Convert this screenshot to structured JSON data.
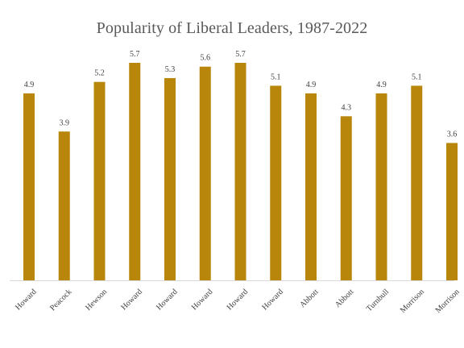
{
  "colors": {
    "background": "#ffffff",
    "bar": "#b8860b",
    "title": "#595959",
    "label": "#404040",
    "axis": "#d9d9d9"
  },
  "chart_data": {
    "type": "bar",
    "title": "Popularity of Liberal Leaders, 1987-2022",
    "xlabel": "",
    "ylabel": "",
    "categories": [
      "Howard",
      "Peacock",
      "Hewson",
      "Howard",
      "Howard",
      "Howard",
      "Howard",
      "Howard",
      "Abbott",
      "Abbott",
      "Turnbull",
      "Morrison",
      "Morrison"
    ],
    "values": [
      4.9,
      3.9,
      5.2,
      5.7,
      5.3,
      5.6,
      5.7,
      5.1,
      4.9,
      4.3,
      4.9,
      5.1,
      3.6
    ],
    "value_labels": [
      "4.9",
      "3.9",
      "5.2",
      "5.7",
      "5.3",
      "5.6",
      "5.7",
      "5.1",
      "4.9",
      "4.3",
      "4.9",
      "5.1",
      "3.6"
    ],
    "ylim": [
      0,
      5.7
    ],
    "grid": false,
    "legend": "none",
    "data_labels": "outside-end",
    "tick_label_rotation": "45"
  }
}
